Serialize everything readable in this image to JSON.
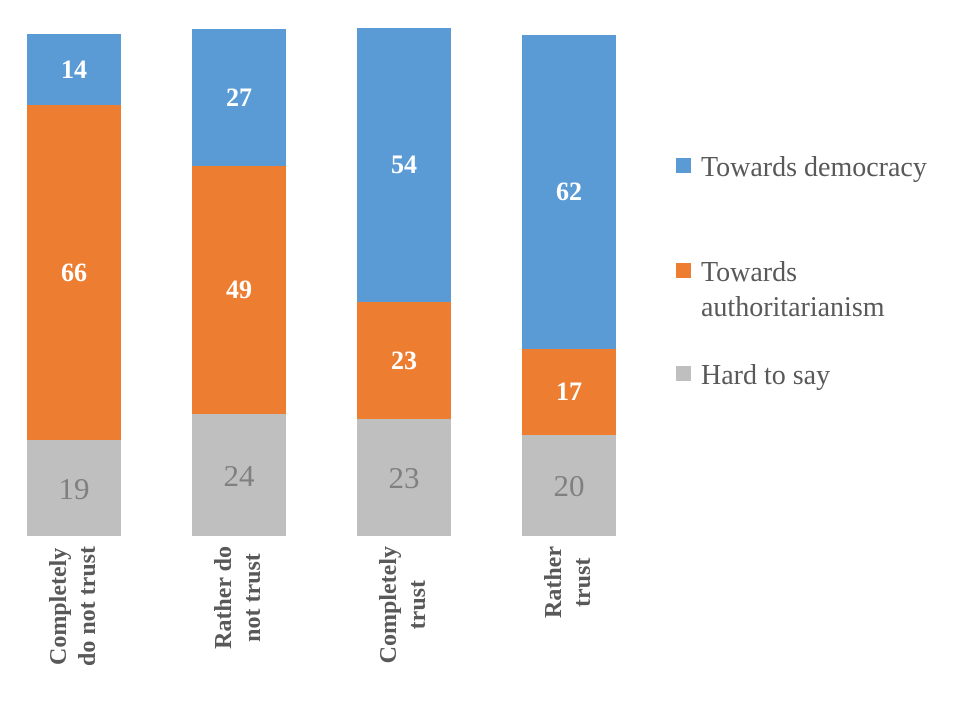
{
  "chart_data": {
    "type": "bar",
    "variant": "stacked-column",
    "title": "",
    "categories": [
      "Completely\ndo not trust",
      "Rather do\nnot trust",
      "Completely\ntrust",
      "Rather\ntrust"
    ],
    "series": [
      {
        "name": "Towards democracy",
        "color": "#5B9BD5",
        "label_color": "#FFFFFF",
        "values": [
          14,
          27,
          54,
          62
        ]
      },
      {
        "name": "Towards authoritarianism",
        "color": "#ED7D31",
        "label_color": "#FFFFFF",
        "values": [
          66,
          49,
          23,
          17
        ]
      },
      {
        "name": "Hard to say",
        "color": "#BFBFBF",
        "label_color": "#808080",
        "values": [
          19,
          24,
          23,
          20
        ]
      }
    ],
    "stack_order_top_to_bottom": [
      "Towards democracy",
      "Towards authoritarianism",
      "Hard to say"
    ],
    "legend": {
      "position": "right",
      "entries": [
        "Towards democracy",
        "Towards authoritarianism",
        "Hard to say"
      ]
    },
    "axis": {
      "value_range": [
        0,
        100
      ],
      "gridlines": false,
      "x_label_rotation_degrees": 90,
      "data_labels": "inside-center"
    }
  },
  "style": {
    "background": "#FFFFFF",
    "axis_text_color": "#595959",
    "legend_text_color": "#595959"
  }
}
